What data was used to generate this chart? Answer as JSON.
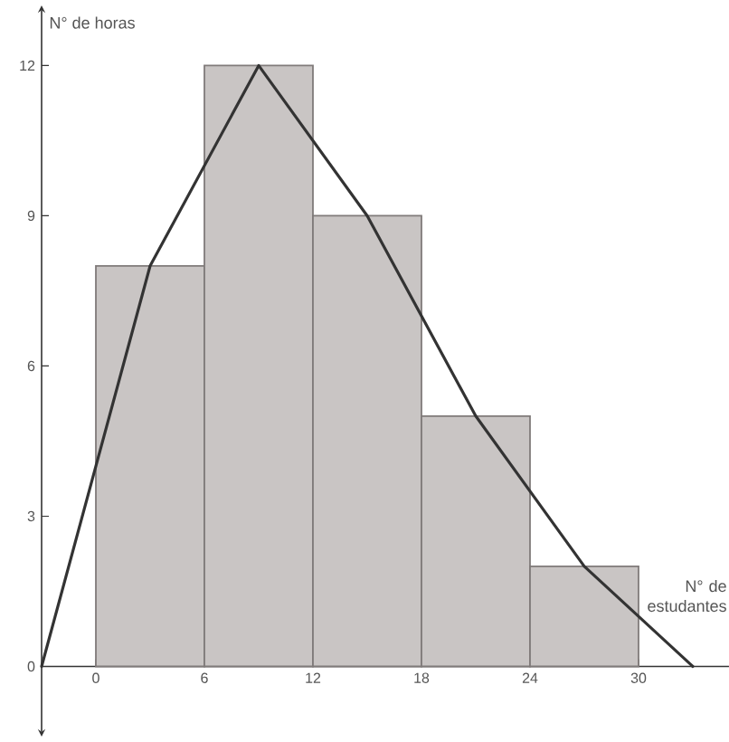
{
  "chart_data": {
    "type": "histogram",
    "xlabel": "N° de estudantes",
    "ylabel": "N° de horas",
    "bins": [
      0,
      6,
      12,
      18,
      24,
      30
    ],
    "series": [
      {
        "values": [
          8,
          12,
          9,
          5,
          2
        ],
        "color": "#c9c5c4"
      },
      {
        "type": "line",
        "x": [
          -3,
          3,
          9,
          15,
          21,
          27,
          33
        ],
        "values": [
          0,
          8,
          12,
          9,
          5,
          2,
          0
        ],
        "color": "#333333"
      }
    ],
    "xlim": [
      -3,
      35
    ],
    "ylim": [
      -1.4,
      13.2
    ],
    "xticks": [
      0,
      6,
      12,
      18,
      24,
      30
    ],
    "yticks": [
      0,
      3,
      6,
      9,
      12
    ]
  }
}
